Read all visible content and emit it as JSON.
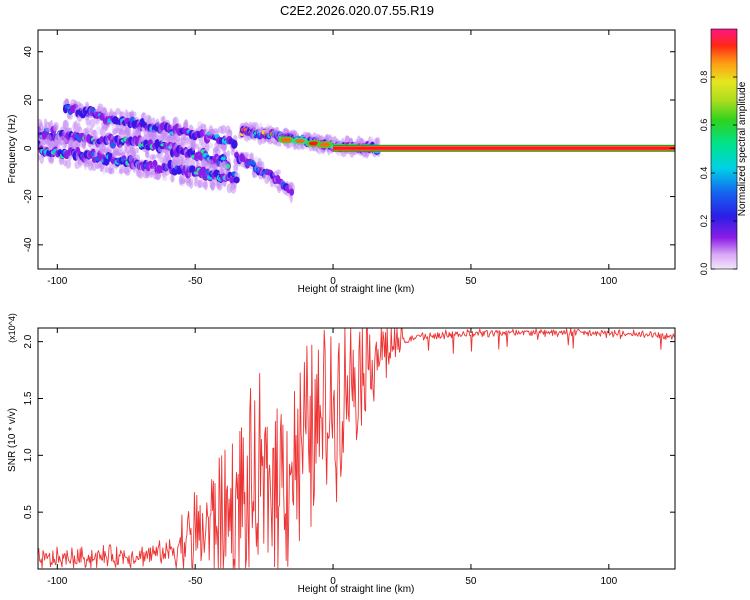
{
  "title": "C2E2.2026.020.07.55.R19",
  "chart_data": [
    {
      "type": "heatmap",
      "xlabel": "Height of straight line (km)",
      "ylabel": "Frequency (Hz)",
      "xlim": [
        -107,
        124
      ],
      "ylim": [
        -50,
        49
      ],
      "xticks": [
        -100,
        -50,
        0,
        50,
        100
      ],
      "xtick_labels": [
        "-100",
        "-50",
        "0",
        "50",
        "100"
      ],
      "yticks": [
        40,
        20,
        0,
        -20,
        -40
      ],
      "ytick_labels": [
        "40",
        "20",
        "0",
        "-20",
        "-40"
      ],
      "colorbar": {
        "label": "Normalized spectral amplitude",
        "range": [
          0,
          1
        ],
        "ticks": [
          0.0,
          0.2,
          0.4,
          0.6,
          0.8
        ],
        "tick_labels": [
          "0.0",
          "0.2",
          "0.4",
          "0.6",
          "0.8"
        ]
      },
      "features": [
        {
          "name": "upper band",
          "x": [
            -97,
            -80,
            -60,
            -40,
            -35
          ],
          "freq": [
            17,
            12,
            8,
            4,
            2
          ]
        },
        {
          "name": "middle band",
          "x": [
            -107,
            -90,
            -70,
            -50,
            -38
          ],
          "freq": [
            7,
            4,
            2,
            -2,
            -6
          ]
        },
        {
          "name": "lower band",
          "x": [
            -107,
            -90,
            -70,
            -50,
            -35
          ],
          "freq": [
            0,
            -3,
            -6,
            -10,
            -12
          ]
        },
        {
          "name": "descending branch",
          "x": [
            -35,
            -28,
            -20,
            -15
          ],
          "freq": [
            -3,
            -8,
            -13,
            -18
          ]
        },
        {
          "name": "converging signal",
          "x": [
            -33,
            -20,
            -10,
            0,
            16
          ],
          "freq": [
            7,
            5,
            3,
            1,
            0
          ]
        },
        {
          "name": "carrier line",
          "x": [
            0,
            124
          ],
          "freq": [
            0,
            0
          ]
        }
      ]
    },
    {
      "type": "line",
      "xlabel": "Height of straight line (km)",
      "ylabel": "SNR (10 * v/v)",
      "y_multiplier": "(x10^4)",
      "xlim": [
        -107,
        124
      ],
      "ylim": [
        0.0,
        2.12
      ],
      "xticks": [
        -100,
        -50,
        0,
        50,
        100
      ],
      "xtick_labels": [
        "-100",
        "-50",
        "0",
        "50",
        "100"
      ],
      "yticks": [
        0.5,
        1.0,
        1.5,
        2.0
      ],
      "ytick_labels": [
        "0.5",
        "1.0",
        "1.5",
        "2.0"
      ],
      "series": [
        {
          "name": "SNR",
          "color": "#ee3333",
          "x": [
            -107,
            -90,
            -70,
            -60,
            -50,
            -40,
            -30,
            -25,
            -20,
            -15,
            -10,
            -5,
            0,
            5,
            10,
            15,
            20,
            25,
            30,
            40,
            50,
            60,
            80,
            100,
            124
          ],
          "y": [
            0.08,
            0.1,
            0.12,
            0.15,
            0.3,
            0.45,
            0.6,
            0.7,
            0.85,
            0.95,
            1.1,
            1.25,
            1.45,
            1.65,
            1.8,
            1.9,
            1.95,
            2.0,
            2.04,
            2.06,
            2.07,
            2.08,
            2.08,
            2.07,
            2.05
          ]
        }
      ]
    }
  ]
}
